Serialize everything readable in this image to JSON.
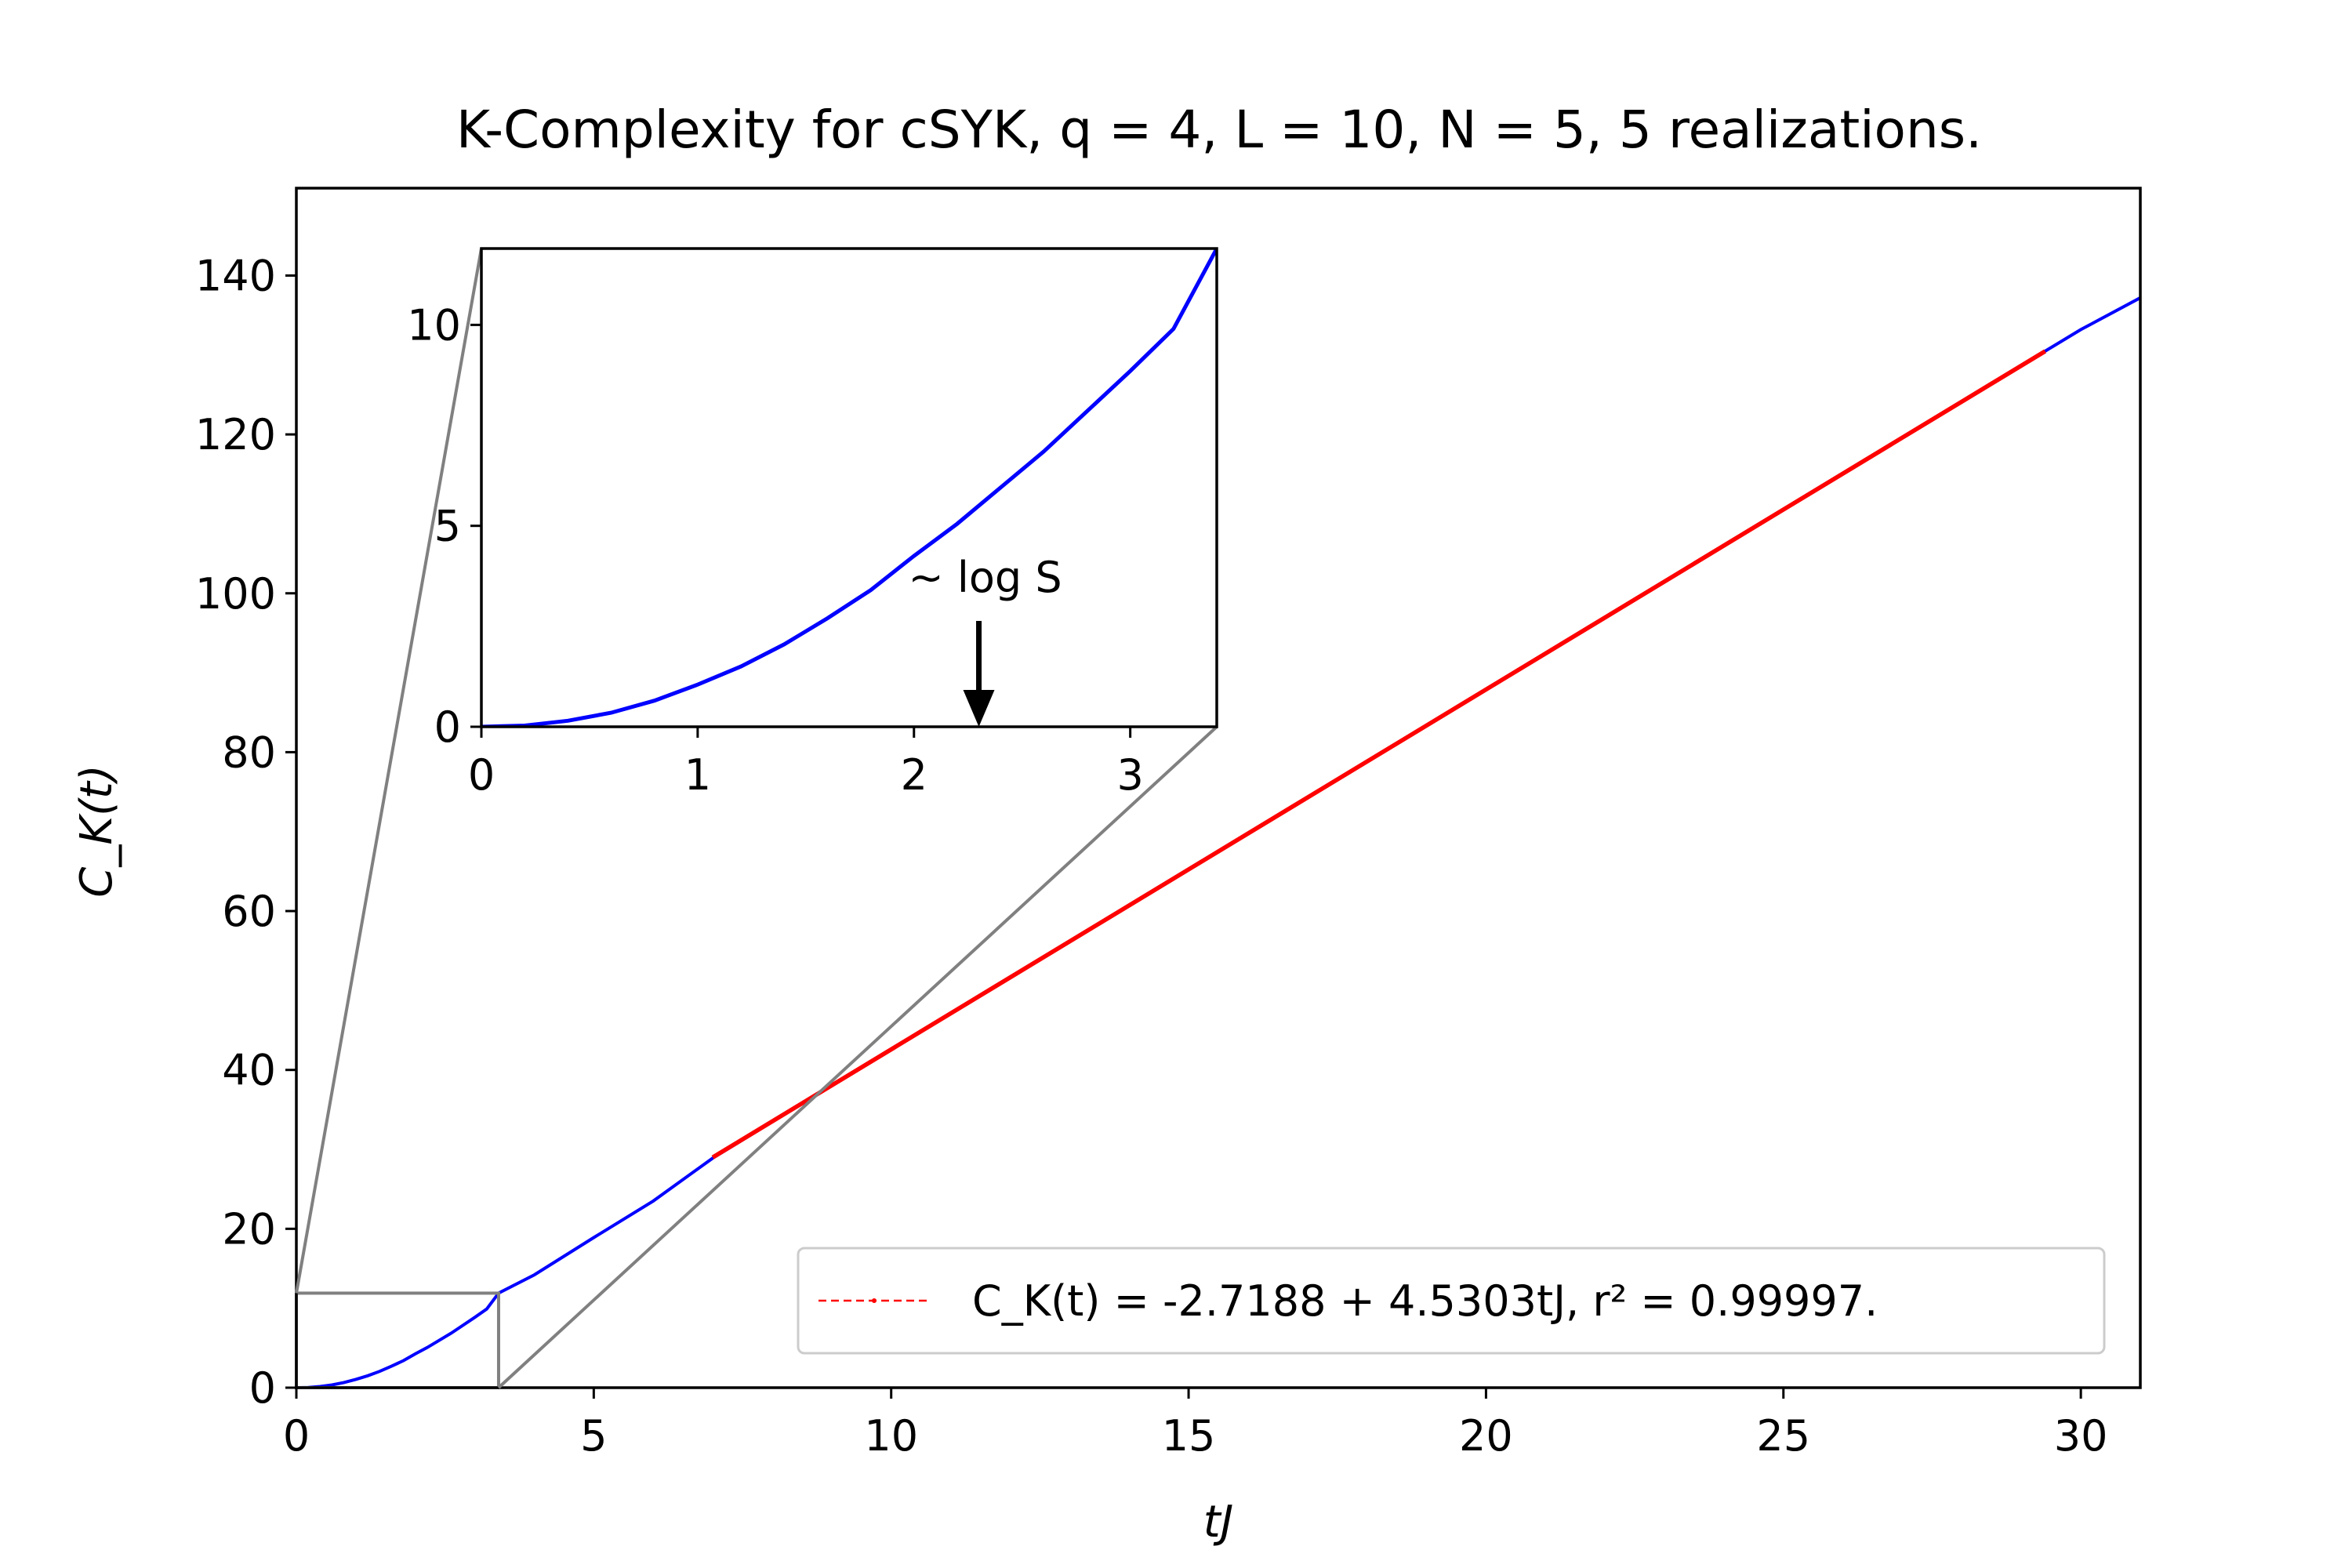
{
  "chart_data": {
    "type": "line",
    "title": "K-Complexity for cSYK, q = 4, L = 10, N = 5, 5 realizations.",
    "xlabel": "tJ",
    "ylabel": "C_K(t)",
    "xlim": [
      0,
      31
    ],
    "ylim": [
      0,
      151
    ],
    "xticks": [
      0,
      5,
      10,
      15,
      20,
      25,
      30
    ],
    "yticks": [
      0,
      20,
      40,
      60,
      80,
      100,
      120,
      140
    ],
    "grid": false,
    "legend": {
      "placement": "lower-right",
      "entries": [
        {
          "label": "C_K(t) = -2.7188 + 4.5303tJ, r² = 0.99997."
        }
      ]
    },
    "series": [
      {
        "kind": "data",
        "color": "#0000ff",
        "points": [
          [
            0,
            0
          ],
          [
            0.2,
            0.03
          ],
          [
            0.4,
            0.15
          ],
          [
            0.6,
            0.35
          ],
          [
            0.8,
            0.65
          ],
          [
            1.0,
            1.05
          ],
          [
            1.2,
            1.5
          ],
          [
            1.4,
            2.05
          ],
          [
            1.6,
            2.7
          ],
          [
            1.8,
            3.4
          ],
          [
            2.0,
            4.25
          ],
          [
            2.2,
            5.05
          ],
          [
            2.4,
            5.95
          ],
          [
            2.6,
            6.85
          ],
          [
            2.8,
            7.85
          ],
          [
            3.0,
            8.85
          ],
          [
            3.2,
            9.9
          ],
          [
            3.4,
            11.9
          ],
          [
            4,
            14.2
          ],
          [
            5,
            18.9
          ],
          [
            6,
            23.5
          ],
          [
            7,
            28.9
          ],
          [
            10,
            42.6
          ],
          [
            15,
            65.3
          ],
          [
            20,
            87.9
          ],
          [
            25,
            110.6
          ],
          [
            30,
            133.2
          ],
          [
            31,
            137.2
          ]
        ]
      },
      {
        "kind": "fit",
        "color": "#ff0000",
        "intercept": -2.7188,
        "slope": 4.5303,
        "x_range": [
          7,
          29.4
        ]
      }
    ],
    "inset": {
      "xlim": [
        0,
        3.4
      ],
      "ylim": [
        0,
        11.9
      ],
      "xticks": [
        0,
        1,
        2,
        3
      ],
      "yticks": [
        0,
        5,
        10
      ],
      "annotation": {
        "text": "~ log S",
        "arrow_x": 2.3
      }
    }
  }
}
